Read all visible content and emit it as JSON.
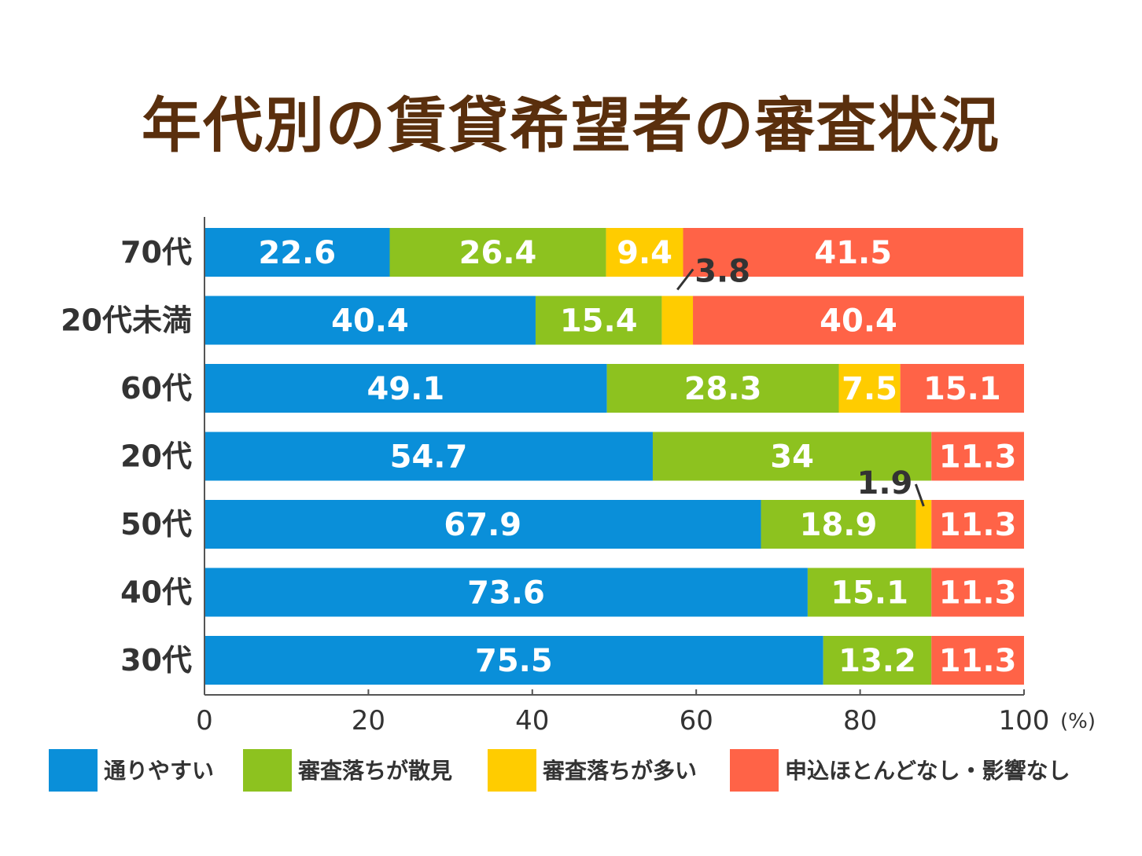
{
  "chart_data": {
    "type": "bar",
    "orientation": "horizontal",
    "stacked": true,
    "title": "年代別の賃貸希望者の審査状況",
    "xlim": [
      0,
      100
    ],
    "x_ticks": [
      "0",
      "20",
      "40",
      "60",
      "80",
      "100"
    ],
    "x_unit": "(%)",
    "grid": false,
    "legend_position": "bottom",
    "categories": [
      "70代",
      "20代未満",
      "60代",
      "20代",
      "50代",
      "40代",
      "30代"
    ],
    "series": [
      {
        "name": "通りやすい",
        "color": "#0a8fd9",
        "values": [
          22.6,
          40.4,
          49.1,
          54.7,
          67.9,
          73.6,
          75.5
        ],
        "labels": [
          "22.6",
          "40.4",
          "49.1",
          "54.7",
          "67.9",
          "73.6",
          "75.5"
        ]
      },
      {
        "name": "審査落ちが散見",
        "color": "#8dc21f",
        "values": [
          26.4,
          15.4,
          28.3,
          34,
          18.9,
          15.1,
          13.2
        ],
        "labels": [
          "26.4",
          "15.4",
          "28.3",
          "34",
          "18.9",
          "15.1",
          "13.2"
        ]
      },
      {
        "name": "審査落ちが多い",
        "color": "#ffcc00",
        "values": [
          9.4,
          3.8,
          7.5,
          0,
          1.9,
          0,
          0
        ],
        "labels": [
          "9.4",
          "3.8",
          "7.5",
          "",
          "1.9",
          "",
          ""
        ]
      },
      {
        "name": "申込ほとんどなし・影響なし",
        "color": "#ff6347",
        "values": [
          41.5,
          40.4,
          15.1,
          11.3,
          11.3,
          11.3,
          11.3
        ],
        "labels": [
          "41.5",
          "40.4",
          "15.1",
          "11.3",
          "11.3",
          "11.3",
          "11.3"
        ]
      }
    ]
  }
}
